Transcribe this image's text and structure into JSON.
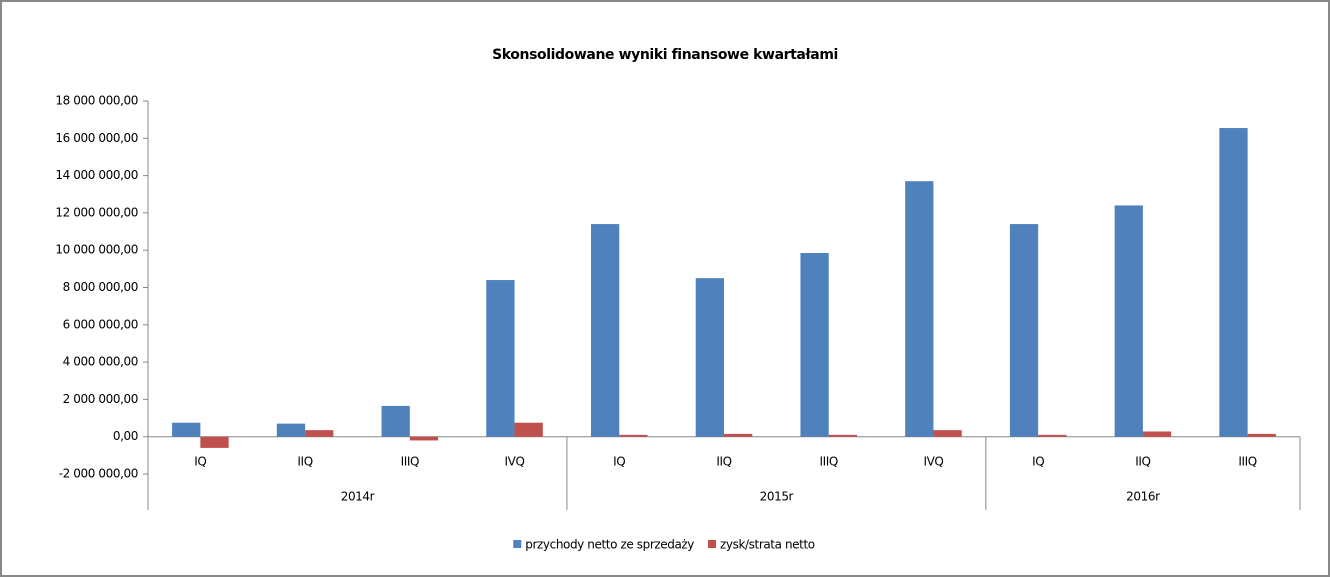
{
  "chart_data": {
    "type": "bar",
    "title": "Skonsolidowane wyniki finansowe kwartałami",
    "groups": [
      {
        "name": "2014r",
        "categories": [
          "IQ",
          "IIQ",
          "IIIQ",
          "IVQ"
        ]
      },
      {
        "name": "2015r",
        "categories": [
          "IQ",
          "IIQ",
          "IIIQ",
          "IVQ"
        ]
      },
      {
        "name": "2016r",
        "categories": [
          "IQ",
          "IIQ",
          "IIIQ"
        ]
      }
    ],
    "series": [
      {
        "name": "przychody netto ze sprzedaży",
        "color": "#4f81bd",
        "values": [
          750000,
          700000,
          1650000,
          8400000,
          11400000,
          8500000,
          9850000,
          13700000,
          11400000,
          12400000,
          16550000
        ]
      },
      {
        "name": "zysk/strata netto",
        "color": "#c0504d",
        "values": [
          -600000,
          350000,
          -200000,
          750000,
          100000,
          150000,
          100000,
          350000,
          100000,
          280000,
          150000
        ]
      }
    ],
    "ylim": [
      -2000000,
      18000000
    ],
    "yticks": [
      {
        "value": -2000000,
        "label": "-2 000 000,00"
      },
      {
        "value": 0,
        "label": "0,00"
      },
      {
        "value": 2000000,
        "label": "2 000 000,00"
      },
      {
        "value": 4000000,
        "label": "4 000 000,00"
      },
      {
        "value": 6000000,
        "label": "6 000 000,00"
      },
      {
        "value": 8000000,
        "label": "8 000 000,00"
      },
      {
        "value": 10000000,
        "label": "10 000 000,00"
      },
      {
        "value": 12000000,
        "label": "12 000 000,00"
      },
      {
        "value": 14000000,
        "label": "14 000 000,00"
      },
      {
        "value": 16000000,
        "label": "16 000 000,00"
      },
      {
        "value": 18000000,
        "label": "18 000 000,00"
      }
    ],
    "grid": false,
    "legend": "bottom"
  }
}
